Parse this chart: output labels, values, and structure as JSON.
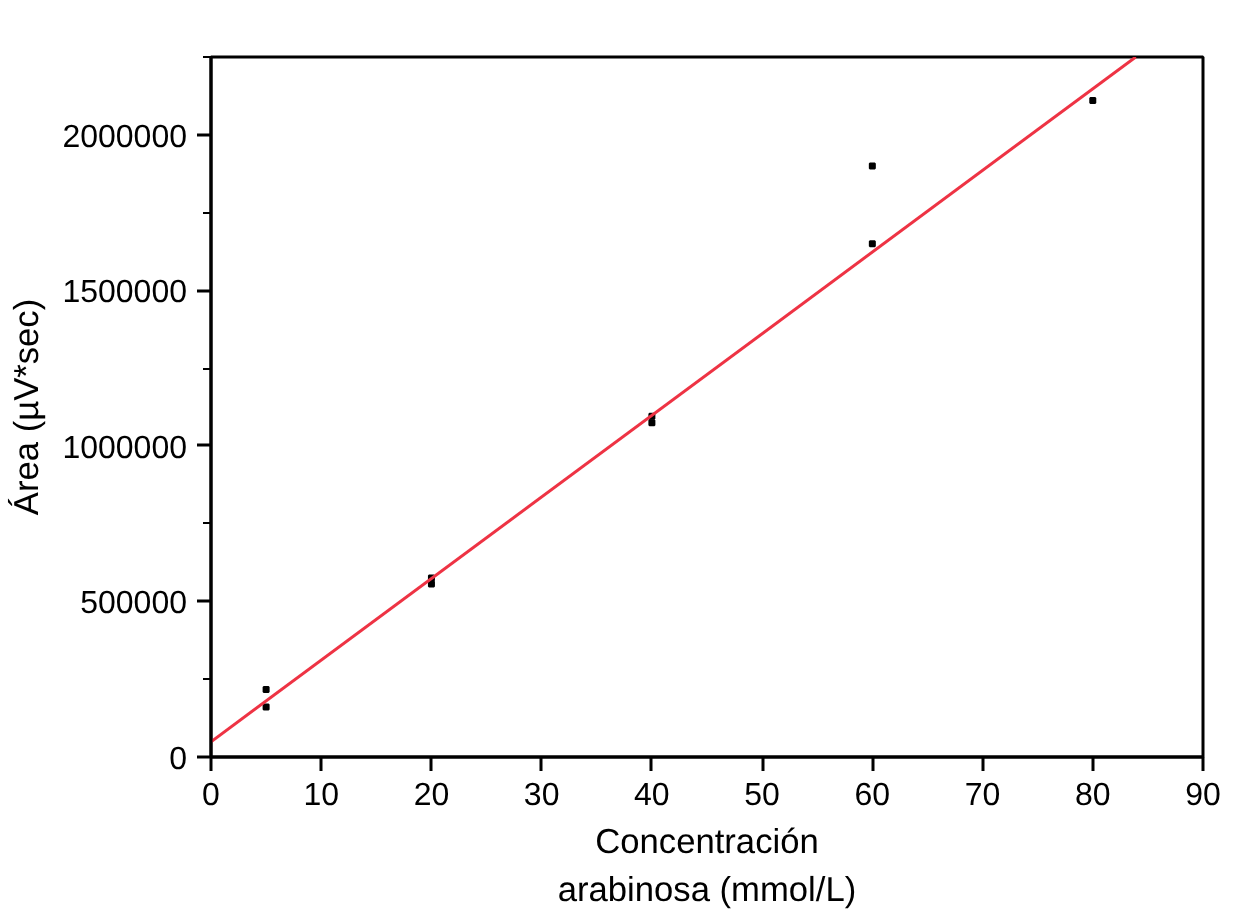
{
  "chart_data": {
    "type": "scatter",
    "xlabel": "Concentración\narabinosa (mmol/L)",
    "ylabel": "Área (µV*sec)",
    "xlim": [
      0,
      90
    ],
    "ylim": [
      0,
      2250000
    ],
    "xticks": [
      0,
      10,
      20,
      30,
      40,
      50,
      60,
      70,
      80,
      90
    ],
    "yticks": [
      0,
      500000,
      1000000,
      1500000,
      2000000
    ],
    "marker": "square",
    "grid": false,
    "series": [
      {
        "color": "#000000",
        "x": [
          5,
          5,
          20,
          20,
          40,
          40,
          60,
          60,
          80
        ],
        "values": [
          217000,
          161000,
          575000,
          556000,
          1095000,
          1074000,
          1900000,
          1650000,
          2110000
        ]
      },
      {
        "type": "line",
        "marker": "none",
        "color": "#ee3344",
        "x": [
          0,
          83.9
        ],
        "values": [
          49000,
          2250000
        ]
      }
    ]
  }
}
